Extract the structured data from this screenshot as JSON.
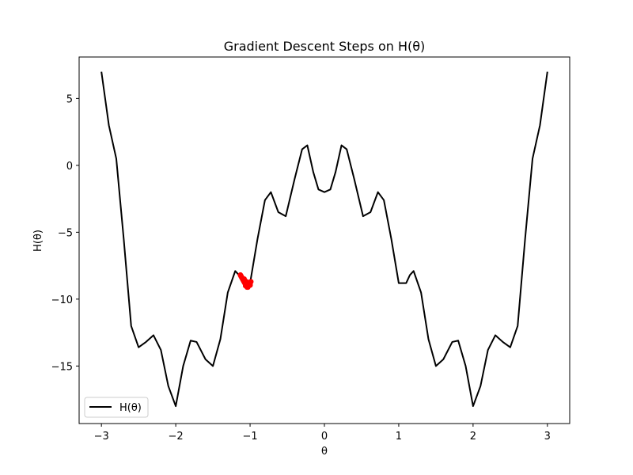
{
  "chart_data": {
    "type": "line",
    "title": "Gradient Descent Steps on H(θ)",
    "xlabel": "θ",
    "ylabel": "H(θ)",
    "xlim": [
      -3.3,
      3.3
    ],
    "ylim": [
      -19.3,
      8.1
    ],
    "xticks": [
      -3,
      -2,
      -1,
      0,
      1,
      2,
      3
    ],
    "xtick_labels": [
      "−3",
      "−2",
      "−1",
      "0",
      "1",
      "2",
      "3"
    ],
    "yticks": [
      5,
      0,
      -5,
      -10,
      -15
    ],
    "ytick_labels": [
      "5",
      "0",
      "−5",
      "−10",
      "−15"
    ],
    "grid": false,
    "legend_position": "lower-left",
    "series": [
      {
        "name": "H(θ)",
        "color": "#000000",
        "x": [
          -3.0,
          -2.9,
          -2.8,
          -2.7,
          -2.6,
          -2.5,
          -2.4,
          -2.3,
          -2.2,
          -2.1,
          -2.0,
          -1.9,
          -1.8,
          -1.72,
          -1.6,
          -1.5,
          -1.4,
          -1.3,
          -1.2,
          -1.15,
          -1.1,
          -1.0,
          -0.9,
          -0.8,
          -0.72,
          -0.62,
          -0.52,
          -0.4,
          -0.3,
          -0.23,
          -0.15,
          -0.08,
          0.0,
          0.08,
          0.15,
          0.23,
          0.3,
          0.4,
          0.52,
          0.62,
          0.72,
          0.8,
          0.9,
          1.0,
          1.1,
          1.15,
          1.2,
          1.3,
          1.4,
          1.5,
          1.6,
          1.72,
          1.8,
          1.9,
          2.0,
          2.1,
          2.2,
          2.3,
          2.4,
          2.5,
          2.6,
          2.7,
          2.8,
          2.9,
          3.0
        ],
        "y": [
          7.0,
          3.0,
          0.5,
          -5.5,
          -12.0,
          -13.6,
          -13.2,
          -12.7,
          -13.8,
          -16.5,
          -18.0,
          -15.0,
          -13.1,
          -13.2,
          -14.5,
          -15.0,
          -13.0,
          -9.5,
          -7.9,
          -8.2,
          -8.8,
          -8.8,
          -5.5,
          -2.6,
          -2.0,
          -3.5,
          -3.8,
          -1.0,
          1.2,
          1.5,
          -0.5,
          -1.8,
          -2.0,
          -1.8,
          -0.5,
          1.5,
          1.2,
          -1.0,
          -3.8,
          -3.5,
          -2.0,
          -2.6,
          -5.5,
          -8.8,
          -8.8,
          -8.2,
          -7.9,
          -9.5,
          -13.0,
          -15.0,
          -14.5,
          -13.2,
          -13.1,
          -15.0,
          -18.0,
          -16.5,
          -13.8,
          -12.7,
          -13.2,
          -13.6,
          -12.0,
          -5.5,
          0.5,
          3.0,
          7.0
        ]
      }
    ],
    "markers": {
      "color": "#ff0000",
      "points": [
        [
          -1.13,
          -8.2
        ],
        [
          -1.12,
          -8.3
        ],
        [
          -1.11,
          -8.4
        ],
        [
          -1.1,
          -8.5
        ],
        [
          -1.09,
          -8.6
        ],
        [
          -1.08,
          -8.7
        ],
        [
          -1.07,
          -8.8
        ],
        [
          -1.06,
          -8.9
        ],
        [
          -1.05,
          -9.0
        ],
        [
          -1.04,
          -9.1
        ],
        [
          -1.03,
          -9.1
        ],
        [
          -1.02,
          -9.0
        ],
        [
          -1.01,
          -8.9
        ],
        [
          -1.0,
          -8.8
        ],
        [
          -0.99,
          -8.7
        ],
        [
          -1.05,
          -8.7
        ],
        [
          -1.08,
          -8.5
        ],
        [
          -1.02,
          -8.8
        ],
        [
          -1.06,
          -9.0
        ],
        [
          -1.0,
          -8.95
        ]
      ]
    }
  }
}
